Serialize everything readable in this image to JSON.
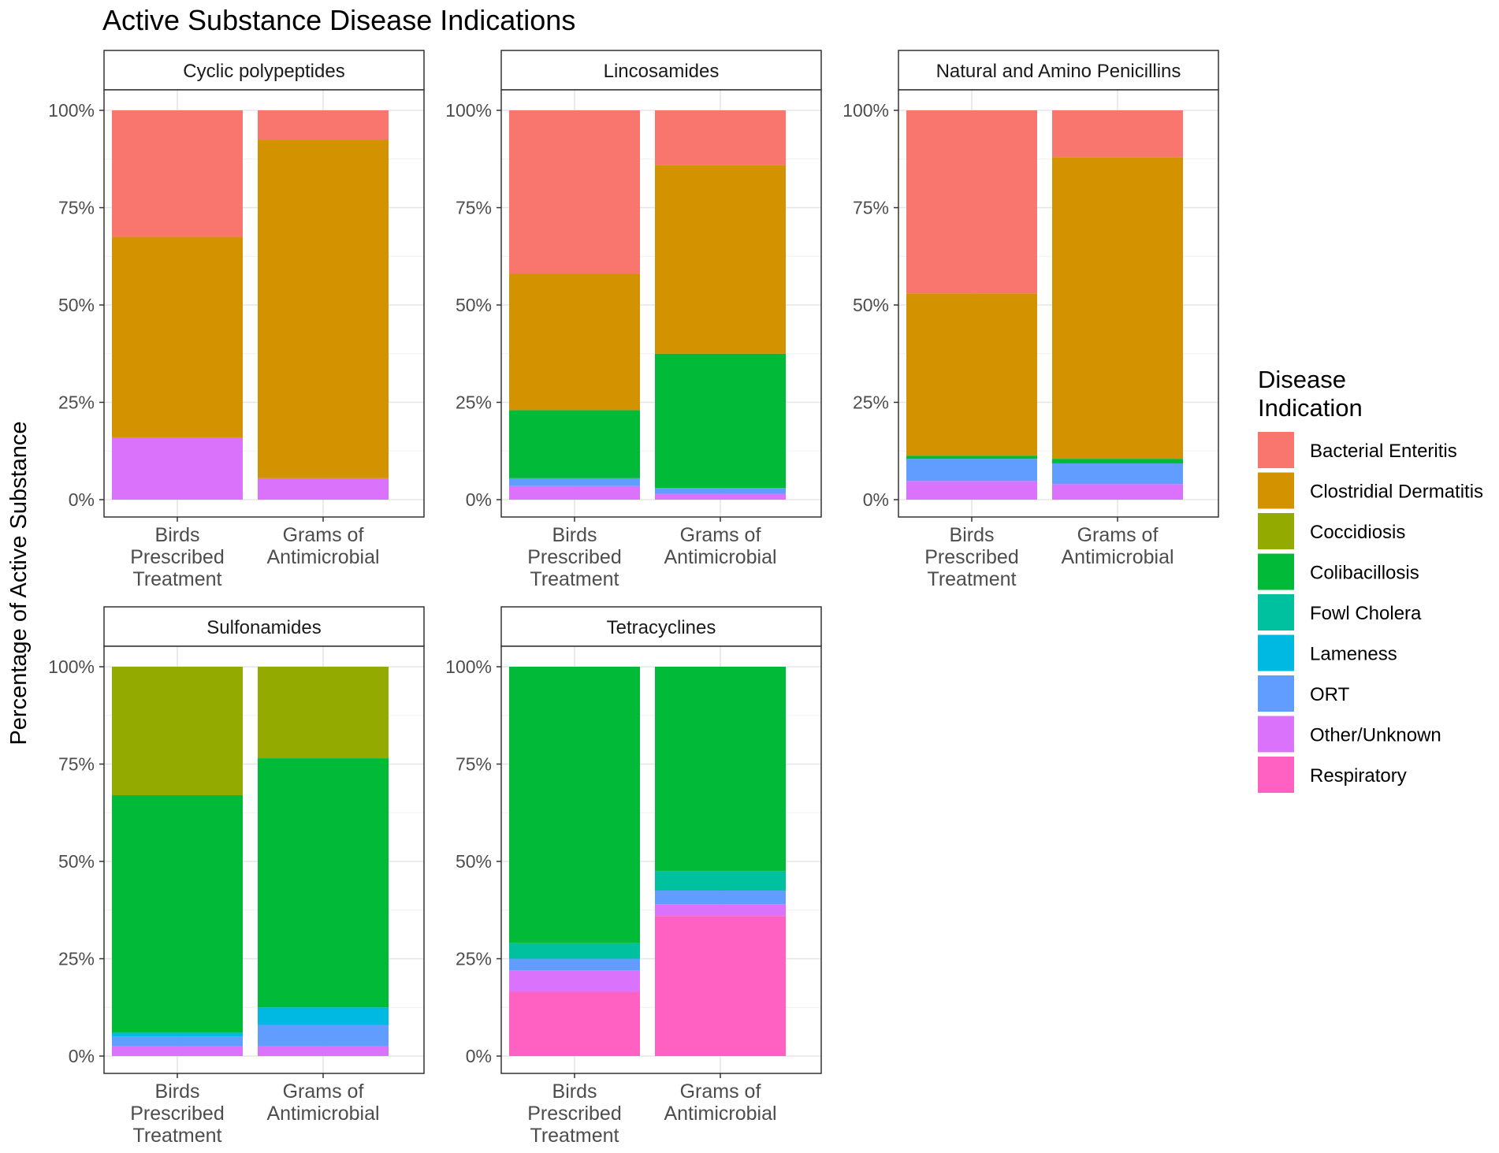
{
  "chart_data": {
    "type": "bar",
    "stacked": true,
    "percent": true,
    "title": "Active Substance Disease Indications",
    "xlabel": "",
    "ylabel": "Percentage of Active Substance",
    "ylim": [
      0,
      100
    ],
    "yticks": [
      "0%",
      "25%",
      "50%",
      "75%",
      "100%"
    ],
    "ytick_values": [
      0,
      25,
      50,
      75,
      100
    ],
    "categories": [
      [
        "Birds",
        "Prescribed",
        "Treatment"
      ],
      [
        "Grams of",
        "Antimicrobial"
      ]
    ],
    "legend": {
      "title": [
        "Disease",
        "Indication"
      ],
      "position": "right",
      "entries": [
        {
          "name": "Bacterial Enteritis",
          "color": "#F8766D"
        },
        {
          "name": "Clostridial Dermatitis",
          "color": "#D39200"
        },
        {
          "name": "Coccidiosis",
          "color": "#93AA00"
        },
        {
          "name": "Colibacillosis",
          "color": "#00BA38"
        },
        {
          "name": "Fowl Cholera",
          "color": "#00C19F"
        },
        {
          "name": "Lameness",
          "color": "#00B9E3"
        },
        {
          "name": "ORT",
          "color": "#619CFF"
        },
        {
          "name": "Other/Unknown",
          "color": "#DB72FB"
        },
        {
          "name": "Respiratory",
          "color": "#FF61C3"
        }
      ]
    },
    "panels": [
      {
        "label": "Cyclic polypeptides",
        "bars": [
          {
            "segments": {
              "Bacterial Enteritis": 32.5,
              "Clostridial Dermatitis": 51.5,
              "Other/Unknown": 16
            }
          },
          {
            "segments": {
              "Bacterial Enteritis": 7.5,
              "Clostridial Dermatitis": 87,
              "Other/Unknown": 5.5
            }
          }
        ]
      },
      {
        "label": "Lincosamides",
        "bars": [
          {
            "segments": {
              "Bacterial Enteritis": 42,
              "Clostridial Dermatitis": 35,
              "Colibacillosis": 17.5,
              "ORT": 2,
              "Other/Unknown": 3.5
            }
          },
          {
            "segments": {
              "Bacterial Enteritis": 14,
              "Clostridial Dermatitis": 48.5,
              "Colibacillosis": 34.5,
              "ORT": 1.5,
              "Other/Unknown": 1.5
            }
          }
        ]
      },
      {
        "label": "Natural and Amino Penicillins",
        "bars": [
          {
            "segments": {
              "Bacterial Enteritis": 47,
              "Clostridial Dermatitis": 41.7,
              "Colibacillosis": 0.8,
              "ORT": 5.7,
              "Other/Unknown": 4.8
            }
          },
          {
            "segments": {
              "Bacterial Enteritis": 12,
              "Clostridial Dermatitis": 77.5,
              "Colibacillosis": 1.2,
              "ORT": 5.3,
              "Other/Unknown": 4
            }
          }
        ]
      },
      {
        "label": "Sulfonamides",
        "bars": [
          {
            "segments": {
              "Coccidiosis": 33,
              "Colibacillosis": 61,
              "Lameness": 1,
              "ORT": 2.5,
              "Other/Unknown": 2.5
            }
          },
          {
            "segments": {
              "Coccidiosis": 23.5,
              "Colibacillosis": 64,
              "Lameness": 4.5,
              "ORT": 5.5,
              "Other/Unknown": 2.5
            }
          }
        ]
      },
      {
        "label": "Tetracyclines",
        "bars": [
          {
            "segments": {
              "Colibacillosis": 71,
              "Fowl Cholera": 4,
              "ORT": 3,
              "Other/Unknown": 5.5,
              "Respiratory": 16.5
            }
          },
          {
            "segments": {
              "Colibacillosis": 52.5,
              "Fowl Cholera": 5,
              "ORT": 3.5,
              "Other/Unknown": 3,
              "Respiratory": 36
            }
          }
        ]
      }
    ]
  }
}
